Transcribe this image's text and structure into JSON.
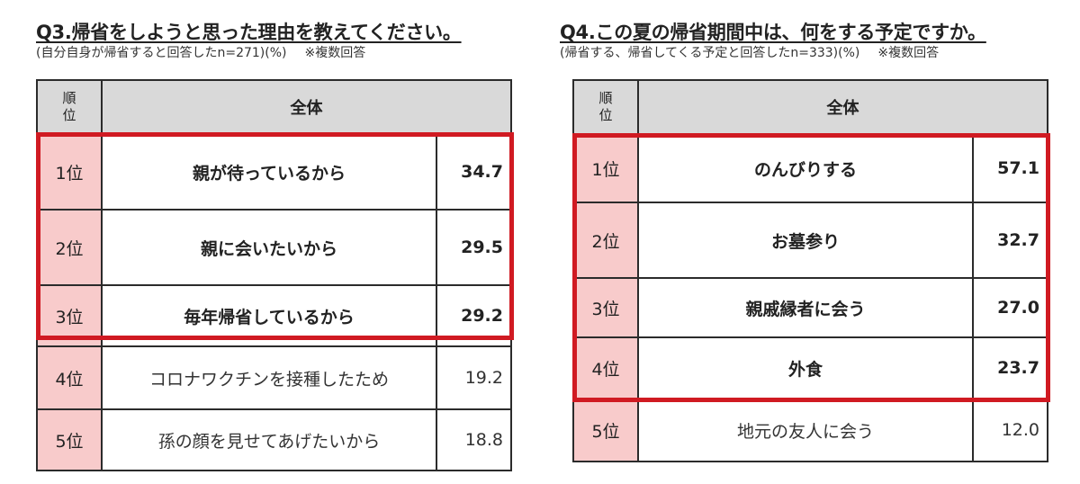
{
  "q3": {
    "title": "Q3.帰省をしようと思った理由を教えてください。",
    "note": "(自分自身が帰省すると回答したn=271)(%)",
    "note_multi": "※複数回答",
    "header": {
      "rank": [
        "順",
        "位"
      ],
      "all": "全体"
    },
    "rows": [
      {
        "rank": "1位",
        "item": "親が待っているから",
        "value": "34.7"
      },
      {
        "rank": "2位",
        "item": "親に会いたいから",
        "value": "29.5"
      },
      {
        "rank": "3位",
        "item": "毎年帰省しているから",
        "value": "29.2"
      },
      {
        "rank": "4位",
        "item": "コロナワクチンを接種したため",
        "value": "19.2"
      },
      {
        "rank": "5位",
        "item": "孫の顔を見せてあげたいから",
        "value": "18.8"
      }
    ]
  },
  "q4": {
    "title": "Q4.この夏の帰省期間中は、何をする予定ですか。",
    "note": "(帰省する、帰省してくる予定と回答したn=333)(%)",
    "note_multi": "※複数回答",
    "header": {
      "rank": [
        "順",
        "位"
      ],
      "all": "全体"
    },
    "rows": [
      {
        "rank": "1位",
        "item": "のんびりする",
        "value": "57.1"
      },
      {
        "rank": "2位",
        "item": "お墓参り",
        "value": "32.7"
      },
      {
        "rank": "3位",
        "item": "親戚縁者に会う",
        "value": "27.0"
      },
      {
        "rank": "4位",
        "item": "外食",
        "value": "23.7"
      },
      {
        "rank": "5位",
        "item": "地元の友人に会う",
        "value": "12.0"
      }
    ]
  },
  "colors": {
    "highlight": "#d01a22",
    "rank_bg": "#f8cbcb",
    "header_bg": "#d9d9d9"
  }
}
